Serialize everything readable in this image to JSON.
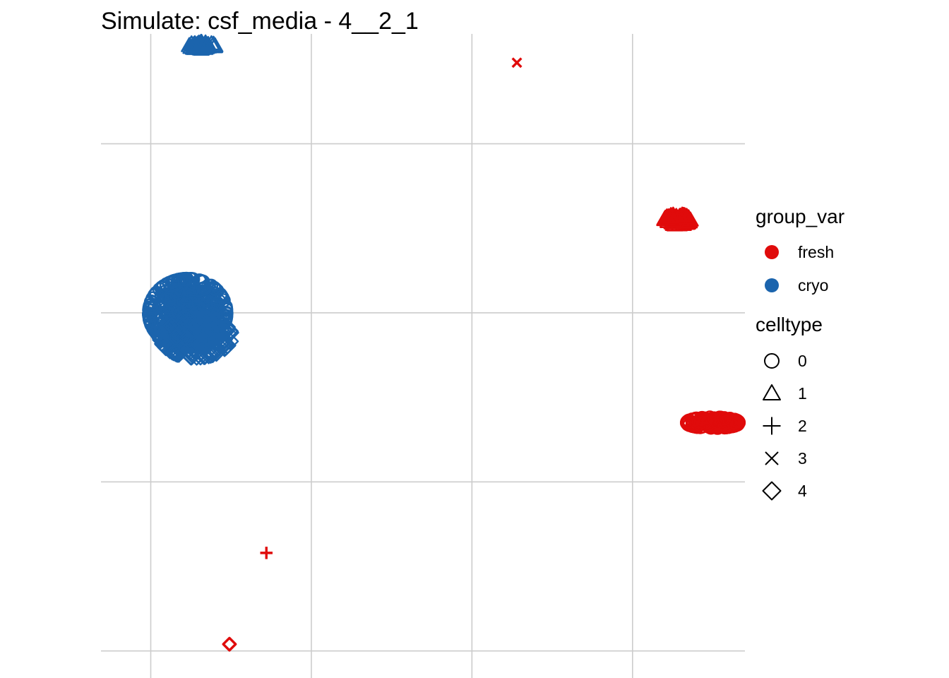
{
  "chart_data": {
    "type": "scatter",
    "title": "Simulate: csf_media - 4__2_1",
    "xlabel": "",
    "ylabel": "",
    "xlim": [
      -0.31,
      3.7
    ],
    "ylim": [
      -0.16,
      3.65
    ],
    "x_gridlines": [
      0,
      1,
      2,
      3
    ],
    "y_gridlines": [
      0,
      1,
      2,
      3
    ],
    "grid": true,
    "colors": {
      "fresh": "#e00b0b",
      "cryo": "#1b64ad"
    },
    "legend": {
      "placement": "right",
      "color_title": "group_var",
      "color_entries": [
        "fresh",
        "cryo"
      ],
      "shape_title": "celltype",
      "shape_entries": [
        "0",
        "1",
        "2",
        "3",
        "4"
      ]
    },
    "clusters": [
      {
        "group_var": "cryo",
        "celltype": "0",
        "x": 0.23,
        "y": 2.0,
        "spread_x": 0.24,
        "spread_y": 0.2,
        "n": 420
      },
      {
        "group_var": "cryo",
        "celltype": "4",
        "x": 0.28,
        "y": 1.86,
        "spread_x": 0.22,
        "spread_y": 0.12,
        "n": 200
      },
      {
        "group_var": "cryo",
        "celltype": "1",
        "x": 0.32,
        "y": 3.58,
        "spread_x": 0.08,
        "spread_y": 0.02,
        "n": 60
      },
      {
        "group_var": "fresh",
        "celltype": "0",
        "x": 3.5,
        "y": 1.35,
        "spread_x": 0.16,
        "spread_y": 0.03,
        "n": 140
      },
      {
        "group_var": "fresh",
        "celltype": "1",
        "x": 3.28,
        "y": 2.55,
        "spread_x": 0.08,
        "spread_y": 0.03,
        "n": 70
      },
      {
        "group_var": "fresh",
        "celltype": "3",
        "x": 2.28,
        "y": 3.48,
        "spread_x": 0,
        "spread_y": 0,
        "n": 1
      },
      {
        "group_var": "fresh",
        "celltype": "2",
        "x": 0.72,
        "y": 0.58,
        "spread_x": 0,
        "spread_y": 0,
        "n": 1
      },
      {
        "group_var": "fresh",
        "celltype": "4",
        "x": 0.49,
        "y": 0.04,
        "spread_x": 0,
        "spread_y": 0,
        "n": 1
      }
    ]
  }
}
